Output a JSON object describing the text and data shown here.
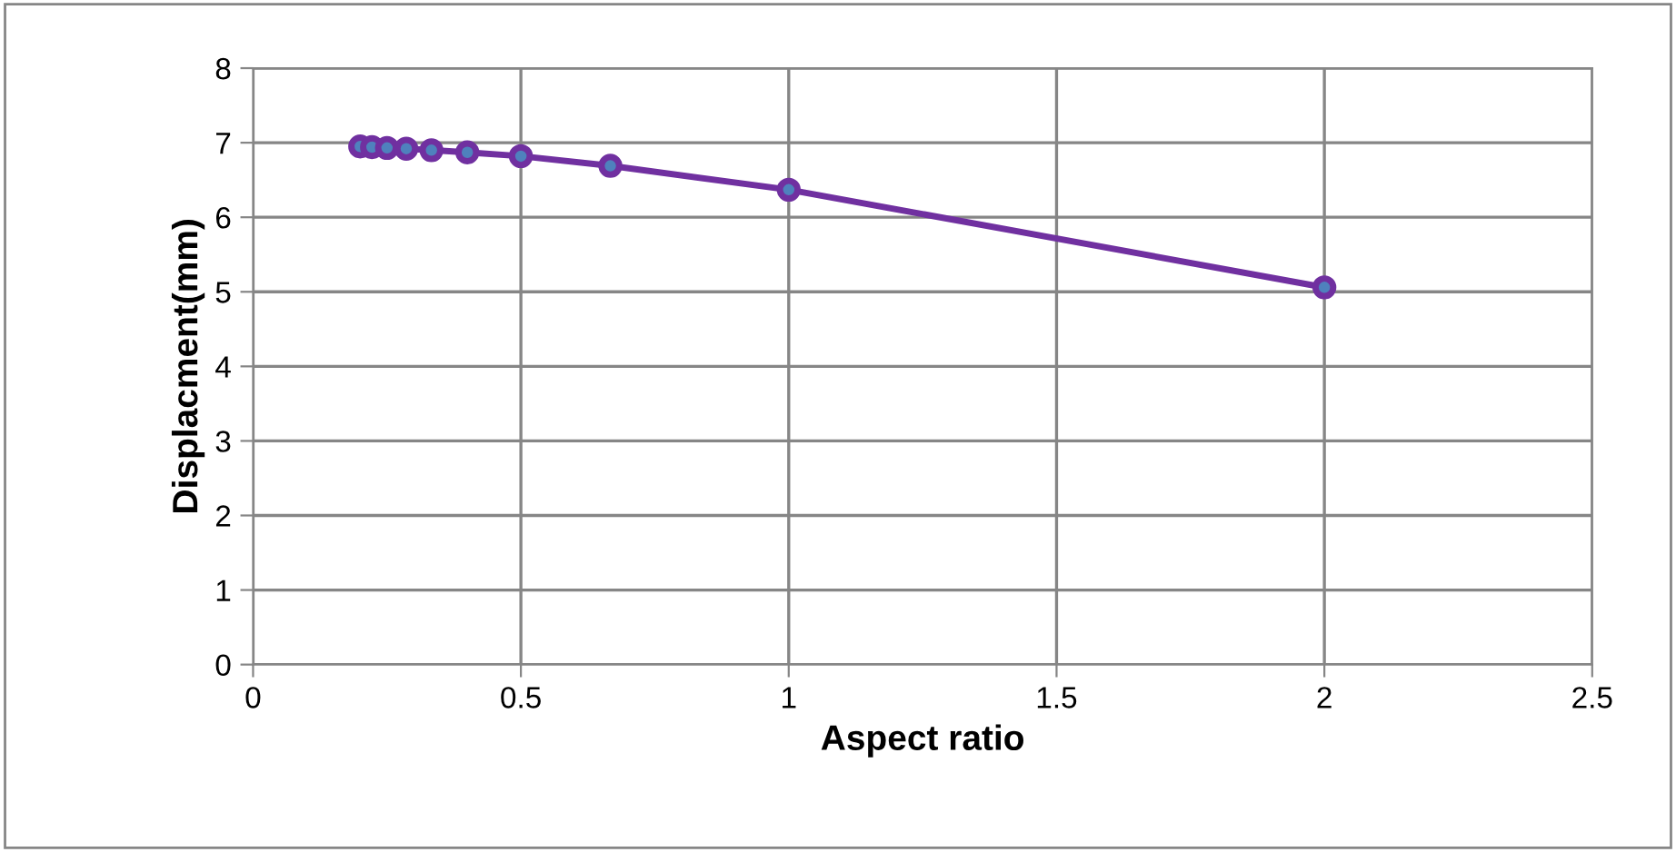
{
  "chart_data": {
    "type": "line",
    "xlabel": "Aspect ratio",
    "ylabel": "Displacment(mm)",
    "series": [
      {
        "color": "#7030a0",
        "x": [
          0.2,
          0.222,
          0.25,
          0.286,
          0.333,
          0.4,
          0.5,
          0.667,
          1,
          2
        ],
        "values": [
          6.95,
          6.94,
          6.93,
          6.92,
          6.9,
          6.87,
          6.82,
          6.69,
          6.37,
          5.06
        ]
      }
    ],
    "xlim": [
      0,
      2.5
    ],
    "xticks": [
      0,
      0.5,
      1,
      1.5,
      2,
      2.5
    ],
    "ylim": [
      0,
      8
    ],
    "yticks": [
      0,
      1,
      2,
      3,
      4,
      5,
      6,
      7,
      8
    ],
    "grid": true,
    "marker": "circle",
    "line_style": "solid"
  }
}
